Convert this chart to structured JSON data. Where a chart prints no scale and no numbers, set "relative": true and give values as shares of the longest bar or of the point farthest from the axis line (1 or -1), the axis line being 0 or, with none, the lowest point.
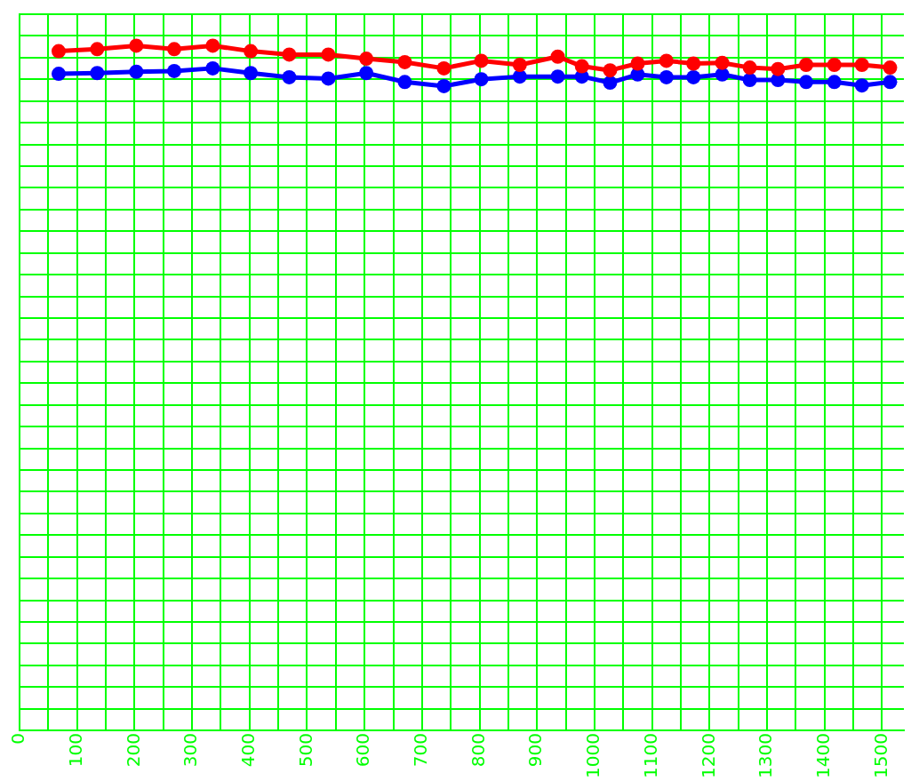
{
  "chart_data": {
    "type": "line",
    "relative": true,
    "x": [
      68,
      135,
      203,
      269,
      336,
      402,
      469,
      537,
      603,
      670,
      738,
      803,
      870,
      936,
      978,
      1027,
      1075,
      1125,
      1172,
      1222,
      1270,
      1319,
      1368,
      1417,
      1465,
      1514
    ],
    "xlim": [
      0,
      1538
    ],
    "xticks": [
      0,
      {
        "value": 50,
        "label": null
      },
      100,
      {
        "value": 150,
        "label": null
      },
      200,
      {
        "value": 250,
        "label": null
      },
      300,
      {
        "value": 350,
        "label": null
      },
      400,
      {
        "value": 450,
        "label": null
      },
      500,
      {
        "value": 550,
        "label": null
      },
      600,
      {
        "value": 650,
        "label": null
      },
      700,
      {
        "value": 750,
        "label": null
      },
      800,
      {
        "value": 850,
        "label": null
      },
      900,
      {
        "value": 950,
        "label": null
      },
      1000,
      {
        "value": 1050,
        "label": null
      },
      1100,
      {
        "value": 1150,
        "label": null
      },
      1200,
      {
        "value": 1250,
        "label": null
      },
      1300,
      {
        "value": 1350,
        "label": null
      },
      1400,
      {
        "value": 1450,
        "label": null
      },
      1500
    ],
    "series": [
      {
        "color": "#ff0000",
        "values": [
          0.992,
          0.995,
          1,
          0.995,
          1,
          0.992,
          0.987,
          0.987,
          0.981,
          0.976,
          0.967,
          0.978,
          0.972,
          0.984,
          0.97,
          0.964,
          0.974,
          0.978,
          0.974,
          0.975,
          0.968,
          0.966,
          0.972,
          0.972,
          0.972,
          0.968
        ]
      },
      {
        "color": "#0000ff",
        "values": [
          0.959,
          0.96,
          0.962,
          0.963,
          0.967,
          0.96,
          0.954,
          0.952,
          0.96,
          0.947,
          0.941,
          0.951,
          0.955,
          0.955,
          0.955,
          0.946,
          0.958,
          0.954,
          0.954,
          0.958,
          0.95,
          0.95,
          0.947,
          0.947,
          0.942,
          0.947
        ]
      }
    ],
    "grid": true,
    "legend": false,
    "marker": "circle",
    "line_style": "solid"
  }
}
